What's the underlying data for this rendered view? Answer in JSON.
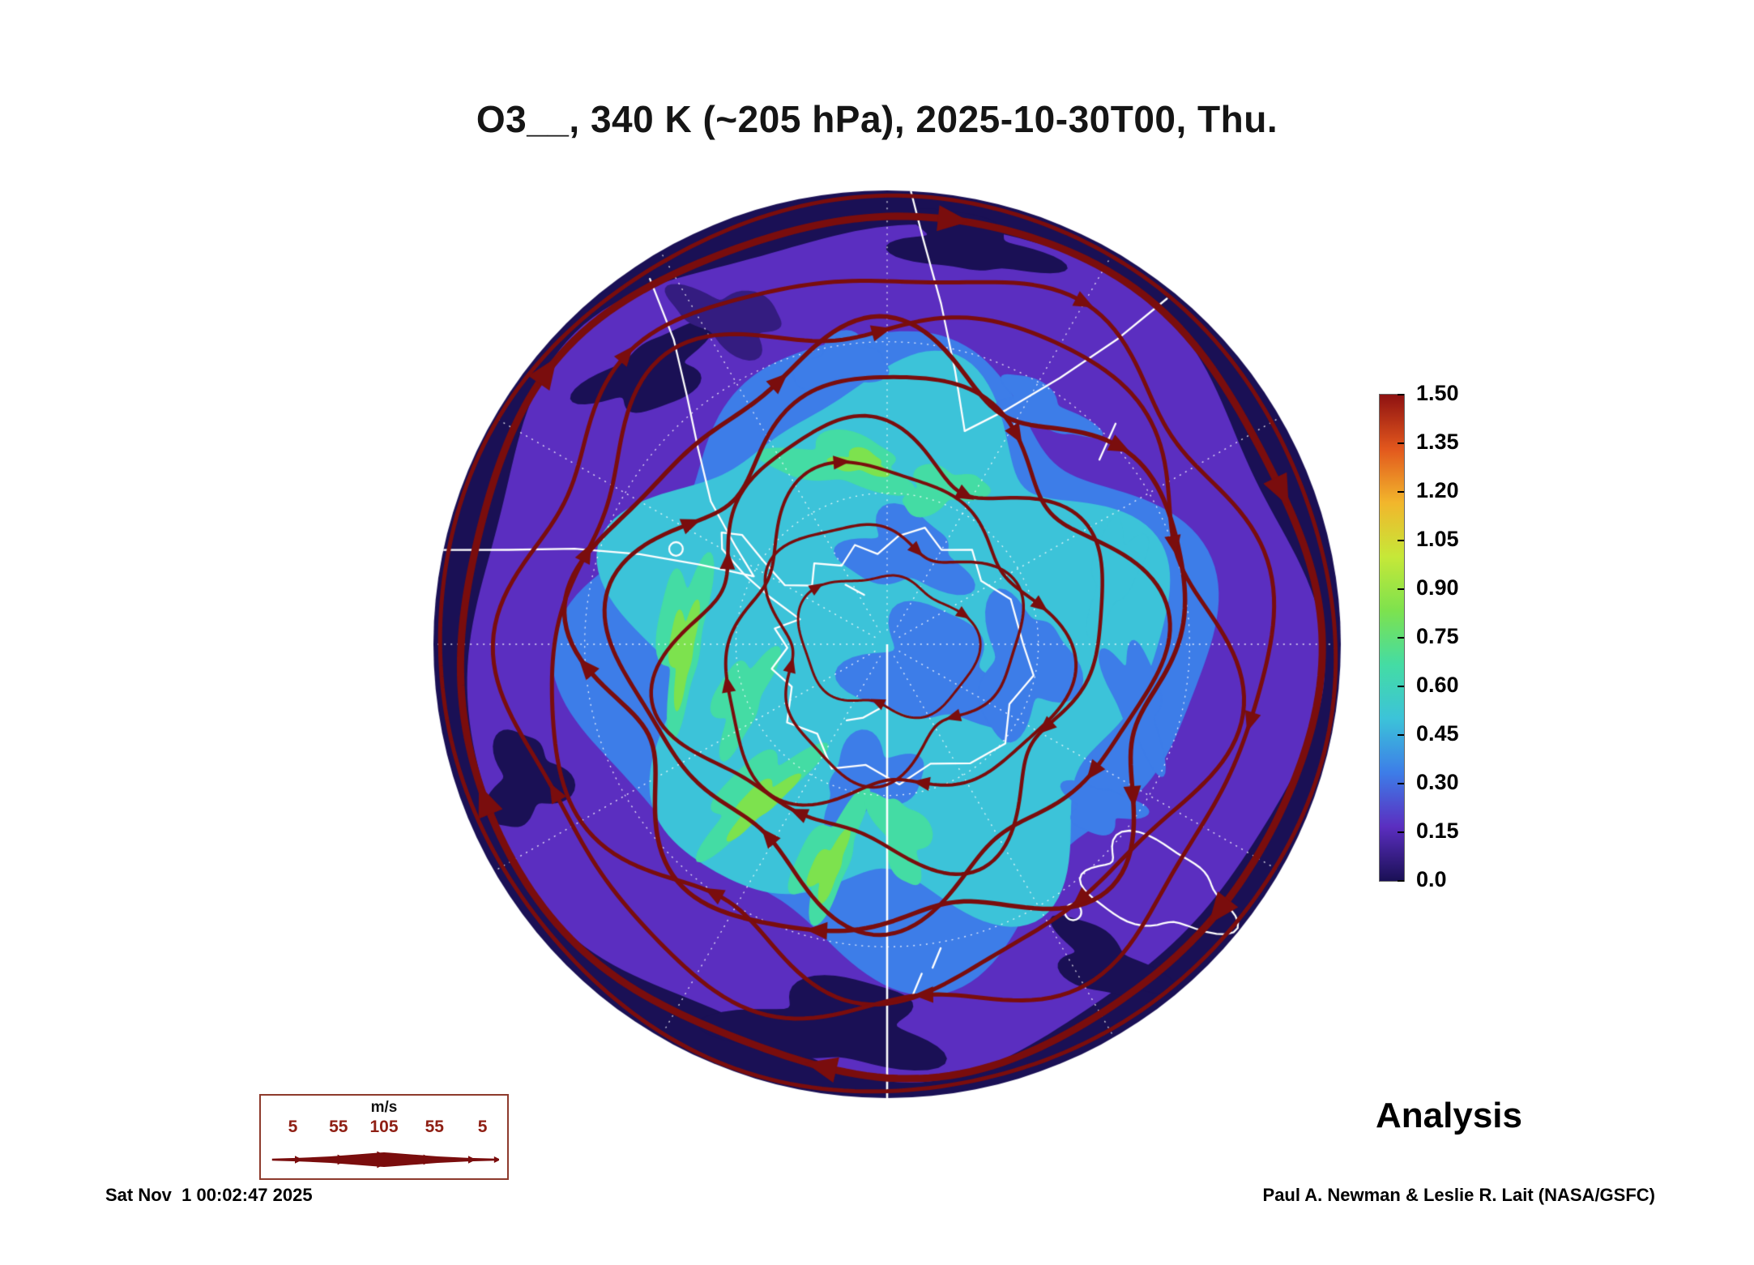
{
  "title": "O3__, 340 K (~205 hPa), 2025-10-30T00, Thu.",
  "analysis_label": "Analysis",
  "footer": {
    "timestamp": "Sat Nov  1 00:02:47 2025",
    "credit": "Paul A. Newman & Leslie R. Lait (NASA/GSFC)"
  },
  "wind_legend": {
    "unit": "m/s",
    "tick_labels": [
      "5",
      "55",
      "105",
      "55",
      "5"
    ],
    "border_color": "#8d3a2c",
    "label_color": "#8f1f14"
  },
  "colorbar": {
    "tick_labels": [
      "1.50",
      "1.35",
      "1.20",
      "1.05",
      "0.90",
      "0.75",
      "0.60",
      "0.45",
      "0.30",
      "0.15",
      "0.0"
    ],
    "border_color": "#666666"
  },
  "chart_data": {
    "type": "heatmap",
    "title": "O3__, 340 K (~205 hPa), 2025-10-30T00, Thu.",
    "variable": "O3",
    "level": "340 K (~205 hPa)",
    "valid_time": "2025-10-30T00 (Thursday)",
    "analysis_type": "Analysis",
    "projection": "south polar stereographic, Antarctica centered",
    "colorbar": {
      "min": 0.0,
      "max": 1.5,
      "step": 0.15,
      "ticks": [
        1.5,
        1.35,
        1.2,
        1.05,
        0.9,
        0.75,
        0.6,
        0.45,
        0.3,
        0.15,
        0.0
      ],
      "colors_low_to_high": [
        "#1a1055",
        "#5b2ec0",
        "#3d7de8",
        "#3cc3d9",
        "#44dca4",
        "#7de24e",
        "#c6e838",
        "#f2b62c",
        "#e2571d",
        "#8e1111"
      ]
    },
    "overlays": {
      "streamline_color": "#7a0d0d",
      "coastline_color": "#ffffff",
      "graticule_color": "#ffffff",
      "wind_speed_scale_mps": [
        5,
        55,
        105,
        55,
        5
      ]
    },
    "field_pattern": {
      "polar_cap": "0.30-0.60 cyan/teal over and around Antarctica with green filaments 0.60-0.90",
      "midlatitude_band": "0.10-0.25 purple",
      "outer_rim": "0.00-0.10 dark navy at disk edge",
      "circulation": "closed circumpolar westerly streamlines in dark red, strongest jet at the outer rim"
    }
  }
}
